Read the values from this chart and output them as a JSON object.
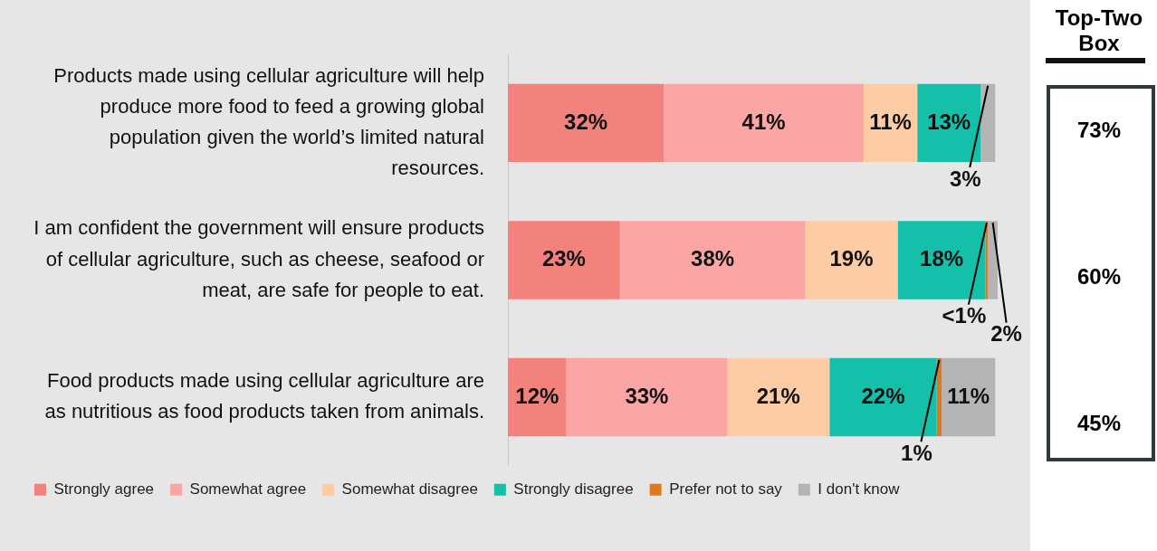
{
  "chart_data": {
    "type": "bar",
    "orientation": "horizontal",
    "stacked": true,
    "grid": false,
    "legend": "bottom",
    "tick_labels": "y",
    "categories": [
      "Products made using cellular agriculture will help produce more food to feed a growing global population given the world’s limited natural resources.",
      "I am confident the government will ensure products of cellular agriculture, such as cheese, seafood or meat, are safe for people to eat.",
      "Food products made using cellular agriculture are as nutritious as food products taken from animals."
    ],
    "series": [
      {
        "name": "Strongly agree",
        "color": "#f4827c",
        "values": [
          32,
          23,
          12
        ],
        "value_labels": [
          "32%",
          "23%",
          "12%"
        ]
      },
      {
        "name": "Somewhat agree",
        "color": "#fca5a5",
        "values": [
          41,
          38,
          33
        ],
        "value_labels": [
          "41%",
          "38%",
          "33%"
        ]
      },
      {
        "name": "Somewhat disagree",
        "color": "#fdcba4",
        "values": [
          11,
          19,
          21
        ],
        "value_labels": [
          "11%",
          "19%",
          "21%"
        ]
      },
      {
        "name": "Strongly disagree",
        "color": "#14c0aa",
        "values": [
          13,
          18,
          22
        ],
        "value_labels": [
          "13%",
          "18%",
          "22%"
        ]
      },
      {
        "name": "Prefer not to say",
        "color": "#e0781e",
        "values": [
          null,
          0.5,
          1
        ],
        "value_labels": [
          null,
          "<1%",
          "1%"
        ]
      },
      {
        "name": "I don't know",
        "color": "#b4b4b4",
        "values": [
          3,
          2,
          11
        ],
        "value_labels": [
          "3%",
          "2%",
          "11%"
        ]
      }
    ],
    "annotations": [
      "Top-Two Box",
      "73%",
      "60%",
      "45%"
    ]
  }
}
